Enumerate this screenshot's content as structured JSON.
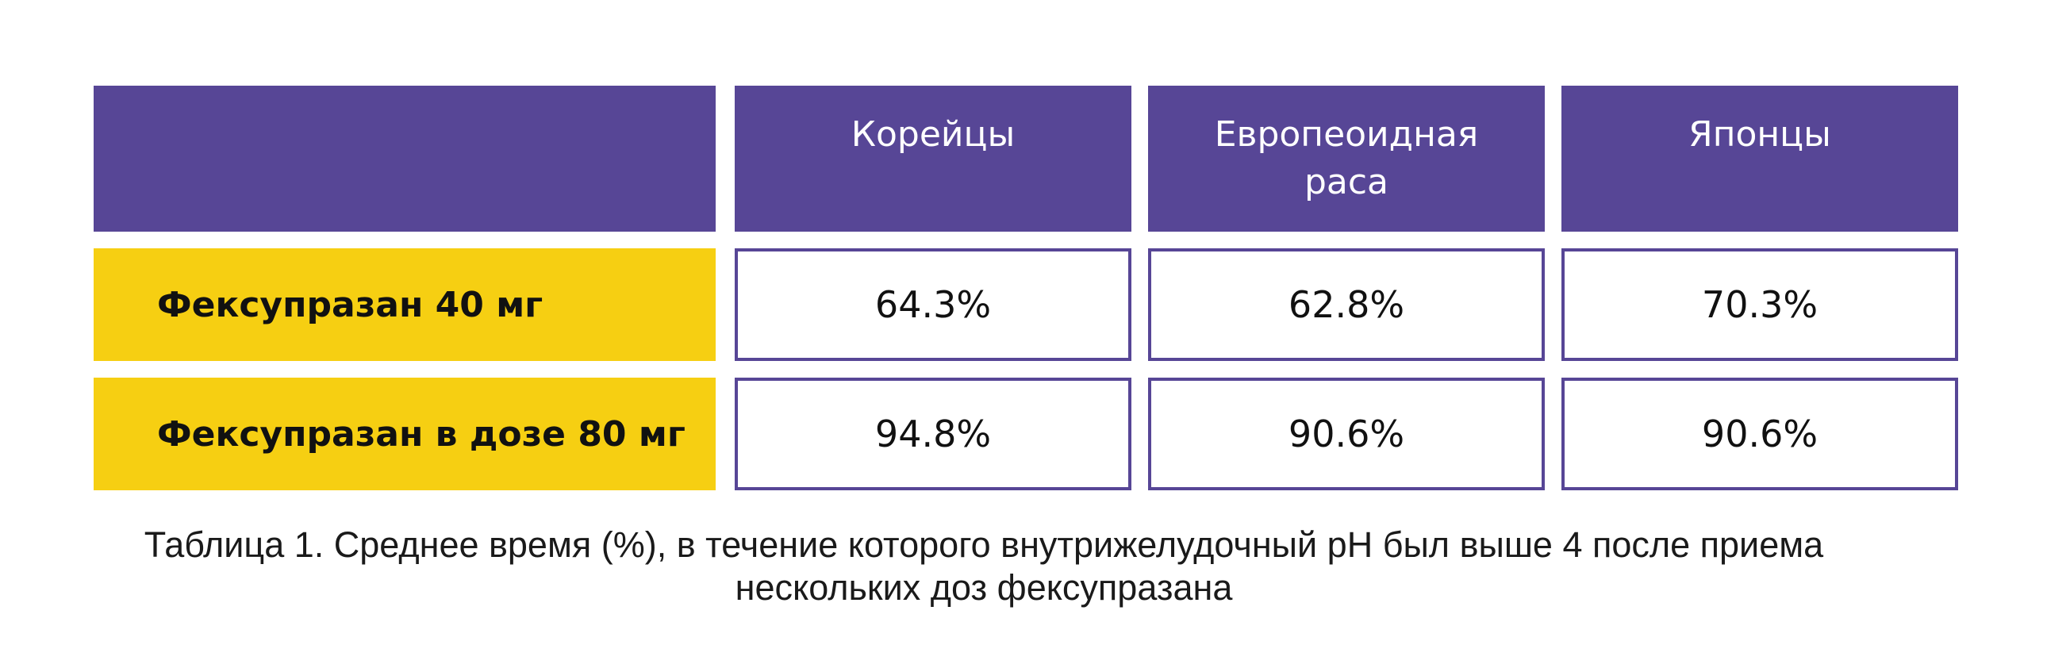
{
  "colors": {
    "header_bg": "#574696",
    "row_label_bg": "#f6cf12",
    "cell_border": "#574696"
  },
  "chart_data": {
    "type": "table",
    "columns": [
      "",
      "Корейцы",
      "Европеоидная раса",
      "Японцы"
    ],
    "rows": [
      {
        "label": "Фексупразан 40 мг",
        "values": [
          "64.3%",
          "62.8%",
          "70.3%"
        ]
      },
      {
        "label": "Фексупразан в дозе 80 мг",
        "values": [
          "94.8%",
          "90.6%",
          "90.6%"
        ]
      }
    ],
    "caption_line1": "Таблица 1. Среднее время (%), в течение которого внутрижелудочный pH был выше 4 после приема",
    "caption_line2": "нескольких доз фексупразана"
  }
}
